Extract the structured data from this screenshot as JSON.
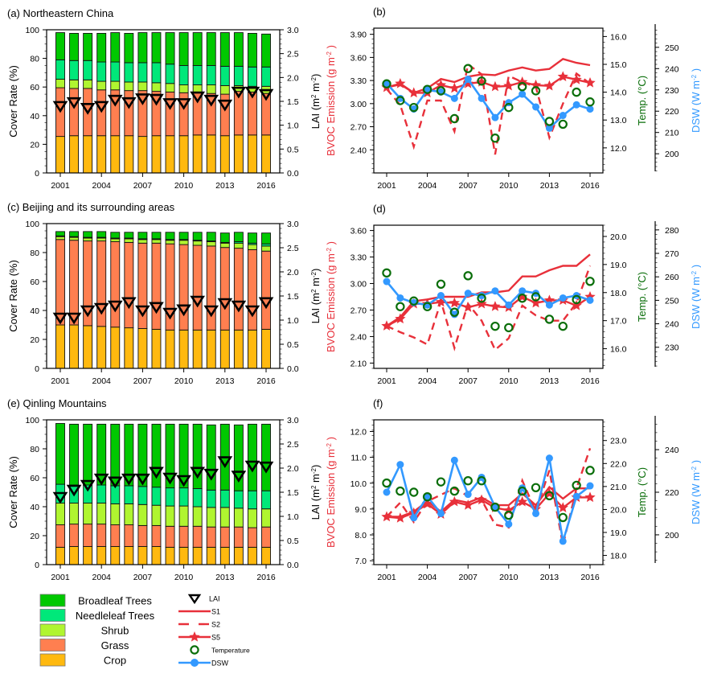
{
  "chart_data": [
    {
      "type": "bar",
      "stacked": true,
      "panel": "a",
      "title": "(a) Northeastern China",
      "ylabel": "Cover Rate (%)",
      "ylabel_right": "LAI (m² m⁻²)",
      "ylim": [
        0,
        100
      ],
      "ylim_right": [
        0,
        3.0
      ],
      "yticks": [
        "0",
        "20",
        "40",
        "60",
        "80",
        "100"
      ],
      "yticks_right": [
        "0.0",
        "0.5",
        "1.0",
        "1.5",
        "2.0",
        "2.5",
        "3.0"
      ],
      "x": [
        2001,
        2002,
        2003,
        2004,
        2005,
        2006,
        2007,
        2008,
        2009,
        2010,
        2011,
        2012,
        2013,
        2014,
        2015,
        2016
      ],
      "xticks": [
        "2001",
        "2004",
        "2007",
        "2010",
        "2013",
        "2016"
      ],
      "series": [
        {
          "name": "Crop",
          "values": [
            25.5,
            26,
            26,
            26,
            26,
            26,
            25.5,
            26,
            26,
            26,
            26.5,
            26.5,
            26,
            26.5,
            26.5,
            26.5
          ]
        },
        {
          "name": "Grass",
          "values": [
            34,
            33,
            33,
            32,
            32,
            31.5,
            32,
            31,
            30.5,
            30,
            29.5,
            29,
            29,
            30.5,
            30,
            29
          ]
        },
        {
          "name": "Shrub",
          "values": [
            6,
            6,
            6,
            6,
            6,
            6,
            6,
            6,
            6,
            5.5,
            5.5,
            6,
            6,
            4,
            4,
            5
          ]
        },
        {
          "name": "Needleleaf Trees",
          "values": [
            13.5,
            13.5,
            13.5,
            13.5,
            13.5,
            13.5,
            13.5,
            14,
            13.5,
            13.5,
            13.5,
            13.5,
            13.5,
            13.5,
            13.5,
            13.5
          ]
        },
        {
          "name": "Broadleaf Trees",
          "values": [
            19,
            19,
            19,
            20,
            20.5,
            20.5,
            21,
            21,
            22,
            23,
            23,
            23,
            23.5,
            23.5,
            23.5,
            23
          ]
        }
      ],
      "lai": [
        1.4,
        1.48,
        1.36,
        1.4,
        1.53,
        1.48,
        1.56,
        1.55,
        1.46,
        1.46,
        1.6,
        1.53,
        1.43,
        1.7,
        1.7,
        1.65
      ]
    },
    {
      "type": "line",
      "panel": "b",
      "title": "(b)",
      "ylabel": "BVOC Emission (g m⁻²)",
      "ylabel2": "Temp. (°C)",
      "ylabel3": "DSW (W m⁻²)",
      "ylim": [
        2.1,
        3.98
      ],
      "yticks": [
        "2.40",
        "2.70",
        "3.00",
        "3.30",
        "3.60",
        "3.90"
      ],
      "ylim2": [
        11.1,
        16.3
      ],
      "yticks2": [
        "12.0",
        "13.0",
        "14.0",
        "15.0",
        "16.0"
      ],
      "ylim3": [
        191,
        259
      ],
      "yticks3": [
        "200",
        "210",
        "220",
        "230",
        "240",
        "250"
      ],
      "x": [
        2001,
        2002,
        2003,
        2004,
        2005,
        2006,
        2007,
        2008,
        2009,
        2010,
        2011,
        2012,
        2013,
        2014,
        2015,
        2016
      ],
      "xticks": [
        "2001",
        "2004",
        "2007",
        "2010",
        "2013",
        "2016"
      ],
      "series": [
        {
          "name": "S1",
          "values": [
            3.21,
            3.25,
            3.14,
            3.2,
            3.32,
            3.28,
            3.35,
            3.38,
            3.37,
            3.43,
            3.47,
            3.43,
            3.45,
            3.58,
            3.53,
            3.5
          ]
        },
        {
          "name": "S2",
          "values": [
            3.19,
            2.98,
            2.44,
            3.04,
            3.04,
            2.64,
            3.51,
            3.38,
            2.34,
            3.36,
            3.28,
            3.22,
            2.56,
            3.0,
            3.39,
            3.26
          ]
        },
        {
          "name": "S5",
          "values": [
            3.21,
            3.26,
            3.14,
            3.14,
            3.24,
            3.2,
            3.26,
            3.28,
            3.22,
            3.23,
            3.28,
            3.24,
            3.23,
            3.35,
            3.31,
            3.27
          ]
        },
        {
          "name": "Temperature",
          "axis": "right",
          "values": [
            14.3,
            13.7,
            13.45,
            14.1,
            14.05,
            13.05,
            14.85,
            14.4,
            12.35,
            13.45,
            14.2,
            14.05,
            12.95,
            12.85,
            14.0,
            13.65
          ]
        },
        {
          "name": "DSW",
          "axis": "right2",
          "values": [
            233,
            226,
            221,
            230,
            229,
            226,
            235,
            226,
            217,
            224,
            228,
            222,
            212,
            218,
            223,
            221
          ]
        }
      ]
    },
    {
      "type": "bar",
      "stacked": true,
      "panel": "c",
      "title": "(c) Beijing and its surrounding areas",
      "ylabel": "Cover Rate (%)",
      "ylabel_right": "LAI (m² m⁻²)",
      "ylim": [
        0,
        100
      ],
      "ylim_right": [
        0,
        3.0
      ],
      "yticks": [
        "0",
        "20",
        "40",
        "60",
        "80",
        "100"
      ],
      "yticks_right": [
        "0.0",
        "0.5",
        "1.0",
        "1.5",
        "2.0",
        "2.5",
        "3.0"
      ],
      "x": [
        2001,
        2002,
        2003,
        2004,
        2005,
        2006,
        2007,
        2008,
        2009,
        2010,
        2011,
        2012,
        2013,
        2014,
        2015,
        2016
      ],
      "xticks": [
        "2001",
        "2004",
        "2007",
        "2010",
        "2013",
        "2016"
      ],
      "series": [
        {
          "name": "Crop",
          "values": [
            30,
            30,
            29.5,
            29,
            28.5,
            28,
            27.5,
            27,
            26.5,
            26.5,
            26.5,
            26.5,
            26.5,
            26.5,
            26.5,
            27
          ]
        },
        {
          "name": "Grass",
          "values": [
            59,
            58.5,
            58.5,
            59,
            59,
            59,
            59,
            59.5,
            59.5,
            59,
            58.5,
            58,
            57,
            56.5,
            55.5,
            54
          ]
        },
        {
          "name": "Shrub",
          "values": [
            2,
            2,
            2,
            2,
            2,
            2.5,
            2.5,
            2.5,
            2.5,
            3,
            3,
            3,
            3,
            3.5,
            3.5,
            3.5
          ]
        },
        {
          "name": "Needleleaf Trees",
          "values": [
            0.5,
            0.5,
            0.5,
            0.5,
            0.5,
            0.5,
            0.5,
            0.5,
            0.5,
            0.5,
            0.5,
            0.5,
            0.5,
            1,
            1,
            1.5
          ]
        },
        {
          "name": "Broadleaf Trees",
          "values": [
            3,
            3.5,
            4,
            4,
            4,
            4,
            4.5,
            4.5,
            5,
            5,
            5.5,
            6,
            6.5,
            6.5,
            7,
            7.5
          ]
        }
      ],
      "lai": [
        1.05,
        1.05,
        1.2,
        1.25,
        1.3,
        1.37,
        1.2,
        1.27,
        1.15,
        1.22,
        1.4,
        1.2,
        1.35,
        1.3,
        1.2,
        1.37
      ]
    },
    {
      "type": "line",
      "panel": "d",
      "title": "(d)",
      "ylabel": "BVOC Emission (g m⁻²)",
      "ylabel2": "Temp. (°C)",
      "ylabel3": "DSW (W m⁻²)",
      "ylim": [
        2.04,
        3.66
      ],
      "yticks": [
        "2.10",
        "2.40",
        "2.70",
        "3.00",
        "3.30",
        "3.60"
      ],
      "ylim2": [
        15.3,
        20.4
      ],
      "yticks2": [
        "16.0",
        "17.0",
        "18.0",
        "19.0",
        "20.0"
      ],
      "ylim3": [
        221,
        282
      ],
      "yticks3": [
        "230",
        "240",
        "250",
        "260",
        "270",
        "280"
      ],
      "x": [
        2001,
        2002,
        2003,
        2004,
        2005,
        2006,
        2007,
        2008,
        2009,
        2010,
        2011,
        2012,
        2013,
        2014,
        2015,
        2016
      ],
      "xticks": [
        "2001",
        "2004",
        "2007",
        "2010",
        "2013",
        "2016"
      ],
      "series": [
        {
          "name": "S1",
          "values": [
            2.52,
            2.62,
            2.8,
            2.82,
            2.85,
            2.85,
            2.85,
            2.9,
            2.9,
            2.92,
            3.08,
            3.08,
            3.15,
            3.2,
            3.2,
            3.33
          ]
        },
        {
          "name": "S2",
          "values": [
            2.52,
            2.45,
            2.39,
            2.31,
            2.8,
            2.27,
            2.77,
            2.58,
            2.25,
            2.38,
            2.75,
            2.64,
            2.58,
            2.58,
            2.78,
            3.2
          ]
        },
        {
          "name": "S5",
          "values": [
            2.52,
            2.6,
            2.77,
            2.77,
            2.79,
            2.78,
            2.73,
            2.77,
            2.74,
            2.73,
            2.85,
            2.78,
            2.81,
            2.81,
            2.75,
            2.85
          ]
        },
        {
          "name": "Temperature",
          "axis": "right",
          "values": [
            18.7,
            17.5,
            17.7,
            17.5,
            18.3,
            17.3,
            18.6,
            17.8,
            16.8,
            16.75,
            17.8,
            17.85,
            17.05,
            16.8,
            17.75,
            18.4
          ]
        },
        {
          "name": "DSW",
          "axis": "right2",
          "values": [
            258,
            251,
            249,
            248,
            252,
            244,
            253,
            252,
            254,
            248,
            254,
            253,
            248,
            251,
            252,
            250
          ]
        }
      ]
    },
    {
      "type": "bar",
      "stacked": true,
      "panel": "e",
      "title": "(e) Qinling Mountains",
      "ylabel": "Cover Rate (%)",
      "ylabel_right": "LAI (m² m⁻²)",
      "ylim": [
        0,
        100
      ],
      "ylim_right": [
        0,
        3.0
      ],
      "yticks": [
        "0",
        "20",
        "40",
        "60",
        "80",
        "100"
      ],
      "yticks_right": [
        "0.0",
        "0.5",
        "1.0",
        "1.5",
        "2.0",
        "2.5",
        "3.0"
      ],
      "x": [
        2001,
        2002,
        2003,
        2004,
        2005,
        2006,
        2007,
        2008,
        2009,
        2010,
        2011,
        2012,
        2013,
        2014,
        2015,
        2016
      ],
      "xticks": [
        "2001",
        "2004",
        "2007",
        "2010",
        "2013",
        "2016"
      ],
      "series": [
        {
          "name": "Crop",
          "values": [
            12,
            12.5,
            12.5,
            12.5,
            12.5,
            12.5,
            12.5,
            12.5,
            12,
            12,
            12,
            12,
            12,
            12,
            12,
            12
          ]
        },
        {
          "name": "Grass",
          "values": [
            15.5,
            15.5,
            15.5,
            15.5,
            15,
            15,
            14.5,
            14.5,
            14.5,
            14.5,
            14.5,
            14,
            14,
            14,
            13.5,
            14
          ]
        },
        {
          "name": "Shrub",
          "values": [
            15,
            14.5,
            14.5,
            14.5,
            14.5,
            14.5,
            14.5,
            14,
            14,
            14,
            13.5,
            13.5,
            13.5,
            13,
            13,
            12.5
          ]
        },
        {
          "name": "Needleleaf Trees",
          "values": [
            13,
            12.5,
            12.5,
            12.5,
            12.5,
            12.5,
            12.5,
            12.5,
            12.5,
            12.5,
            12.5,
            12,
            12,
            12,
            12.5,
            12.5
          ]
        },
        {
          "name": "Broadleaf Trees",
          "values": [
            42,
            42,
            42,
            42,
            42.5,
            42.5,
            43,
            43.5,
            44,
            44,
            44.5,
            45,
            45.5,
            45.5,
            46,
            46
          ]
        }
      ],
      "lai": [
        1.4,
        1.55,
        1.65,
        1.78,
        1.72,
        1.78,
        1.78,
        1.92,
        1.8,
        1.75,
        1.92,
        1.88,
        2.14,
        1.84,
        2.05,
        2.03
      ]
    },
    {
      "type": "line",
      "panel": "f",
      "title": "(f)",
      "ylabel": "BVOC Emission (g m⁻²)",
      "ylabel2": "Temp. (°C)",
      "ylabel3": "DSW (W m⁻²)",
      "ylim": [
        6.85,
        12.45
      ],
      "yticks": [
        "7.0",
        "8.0",
        "9.0",
        "10.0",
        "11.0",
        "12.0"
      ],
      "ylim2": [
        17.6,
        23.9
      ],
      "yticks2": [
        "18.0",
        "19.0",
        "20.0",
        "21.0",
        "22.0",
        "23.0"
      ],
      "ylim3": [
        186,
        254
      ],
      "yticks3": [
        "200",
        "220",
        "240"
      ],
      "x": [
        2001,
        2002,
        2003,
        2004,
        2005,
        2006,
        2007,
        2008,
        2009,
        2010,
        2011,
        2012,
        2013,
        2014,
        2015,
        2016
      ],
      "xticks": [
        "2001",
        "2004",
        "2007",
        "2010",
        "2013",
        "2016"
      ],
      "series": [
        {
          "name": "S1",
          "values": [
            8.7,
            8.7,
            8.9,
            9.3,
            8.9,
            9.35,
            9.25,
            9.45,
            9.15,
            9.15,
            9.6,
            9.15,
            9.85,
            9.4,
            9.8,
            9.8
          ]
        },
        {
          "name": "S2",
          "values": [
            8.7,
            9.25,
            8.5,
            9.3,
            9.55,
            9.8,
            9.5,
            9.35,
            8.4,
            8.28,
            10.1,
            8.9,
            10.5,
            7.6,
            9.8,
            11.35
          ]
        },
        {
          "name": "S5",
          "values": [
            8.7,
            8.65,
            8.85,
            9.2,
            8.8,
            9.28,
            9.15,
            9.35,
            9.05,
            8.95,
            9.28,
            9.0,
            9.6,
            9.05,
            9.45,
            9.45
          ]
        },
        {
          "name": "Temperature",
          "axis": "right",
          "values": [
            21.15,
            20.8,
            20.75,
            20.55,
            21.2,
            20.8,
            21.25,
            21.25,
            20.1,
            19.75,
            20.8,
            20.95,
            20.6,
            19.65,
            21.05,
            21.7
          ]
        },
        {
          "name": "DSW",
          "axis": "right2",
          "values": [
            220,
            233,
            208,
            218,
            210,
            235,
            219,
            227,
            213,
            205,
            222,
            210,
            236,
            197,
            218,
            223
          ]
        }
      ]
    }
  ],
  "legend": {
    "landcover": [
      {
        "label": "Broadleaf Trees",
        "color": "#00c800"
      },
      {
        "label": "Needleleaf Trees",
        "color": "#00e87a"
      },
      {
        "label": "Shrub",
        "color": "#b0f530"
      },
      {
        "label": "Grass",
        "color": "#ff7f50"
      },
      {
        "label": "Crop",
        "color": "#ffb90f"
      }
    ],
    "markers": [
      {
        "label": "LAI",
        "kind": "lai"
      },
      {
        "label": "S1",
        "kind": "s1"
      },
      {
        "label": "S2",
        "kind": "s2"
      },
      {
        "label": "S5",
        "kind": "s5"
      },
      {
        "label": "Temperature",
        "kind": "temp"
      },
      {
        "label": "DSW",
        "kind": "dsw"
      }
    ]
  },
  "colors": {
    "bvoc": "#e8303a",
    "temperature": "#0a6e0a",
    "dsw": "#3399ff",
    "crop": "#ffb90f",
    "grass": "#ff7f50",
    "shrub": "#b0f530",
    "needleleaf": "#00e87a",
    "broadleaf": "#00c800"
  }
}
